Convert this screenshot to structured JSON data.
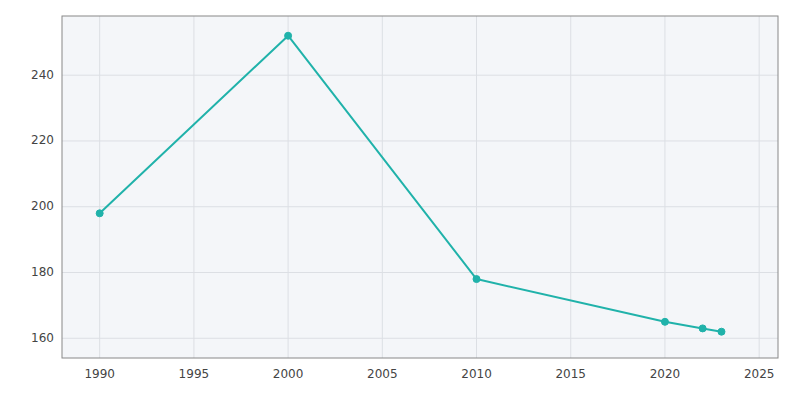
{
  "chart_data": {
    "type": "line",
    "x": [
      1990,
      2000,
      2010,
      2020,
      2022,
      2023
    ],
    "values": [
      198,
      252,
      178,
      165,
      163,
      162
    ],
    "color": "#20B2AA",
    "marker": "circle",
    "xlim": [
      1988,
      2026
    ],
    "ylim": [
      154,
      258
    ],
    "xticks": [
      1990,
      1995,
      2000,
      2005,
      2010,
      2015,
      2020,
      2025
    ],
    "yticks": [
      160,
      180,
      200,
      220,
      240
    ],
    "grid": true
  }
}
